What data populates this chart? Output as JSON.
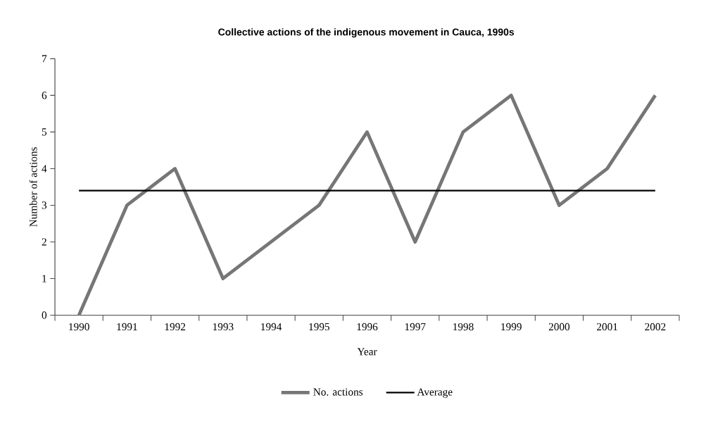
{
  "chart_data": {
    "type": "line",
    "title": "Collective actions of the indigenous movement in Cauca, 1990s",
    "xlabel": "Year",
    "ylabel": "Number of actions",
    "categories": [
      "1990",
      "1991",
      "1992",
      "1993",
      "1994",
      "1995",
      "1996",
      "1997",
      "1998",
      "1999",
      "2000",
      "2001",
      "2002"
    ],
    "series": [
      {
        "name": "No. actions",
        "color": "#767676",
        "values": [
          0,
          3,
          4,
          1,
          2,
          3,
          5,
          2,
          5,
          6,
          3,
          4,
          6
        ]
      },
      {
        "name": "Average",
        "color": "#000000",
        "values": [
          3.4,
          3.4,
          3.4,
          3.4,
          3.4,
          3.4,
          3.4,
          3.4,
          3.4,
          3.4,
          3.4,
          3.4,
          3.4
        ]
      }
    ],
    "ylim": [
      0,
      7
    ],
    "yticks": [
      0,
      1,
      2,
      3,
      4,
      5,
      6,
      7
    ],
    "grid": false,
    "legend": "bottom",
    "marker": "none",
    "line_style": "solid"
  }
}
